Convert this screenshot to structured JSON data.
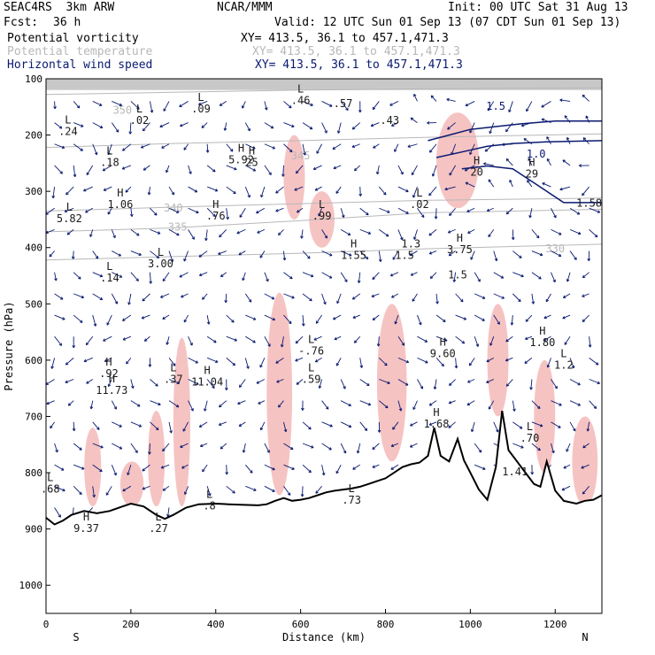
{
  "header": {
    "model": "SEAC4RS  3km ARW",
    "org": "NCAR/MMM",
    "init": "Init: 00 UTC Sat 31 Aug 13",
    "fcst_label": "Fcst:",
    "fcst_value": "36 h",
    "valid": "Valid: 12 UTC Sun 01 Sep 13 (07 CDT Sun 01 Sep 13)"
  },
  "fields": [
    {
      "name": "Potential vorticity",
      "xy": "XY= 413.5, 36.1 to 457.1,471.3",
      "color": "#000000"
    },
    {
      "name": "Potential temperature",
      "xy": "XY= 413.5, 36.1 to 457.1,471.3",
      "color": "#b8b8b8"
    },
    {
      "name": "Horizontal wind speed",
      "xy": "XY= 413.5, 36.1 to 457.1,471.3",
      "color": "#0a1a70"
    }
  ],
  "chart_data": {
    "type": "cross-section",
    "xlabel": "Distance (km)",
    "ylabel": "Pressure (hPa)",
    "xlim": [
      0,
      1310
    ],
    "ylim": [
      100,
      1050
    ],
    "y_reversed": true,
    "x_ticks": [
      0,
      200,
      400,
      600,
      800,
      1000,
      1200
    ],
    "y_ticks": [
      100,
      200,
      300,
      400,
      500,
      600,
      700,
      800,
      900,
      1000
    ],
    "end_labels": {
      "left": "S",
      "right": "N"
    },
    "colors": {
      "pv_contour": "#4a1150",
      "pv_fill": "#f4b8b8",
      "theta": "#b8b8b8",
      "wind": "#0a1a70",
      "terrain": "#000000"
    },
    "terrain": [
      [
        0,
        880
      ],
      [
        20,
        892
      ],
      [
        40,
        885
      ],
      [
        60,
        875
      ],
      [
        90,
        868
      ],
      [
        120,
        872
      ],
      [
        150,
        868
      ],
      [
        180,
        860
      ],
      [
        200,
        855
      ],
      [
        230,
        860
      ],
      [
        260,
        875
      ],
      [
        280,
        882
      ],
      [
        300,
        875
      ],
      [
        330,
        862
      ],
      [
        360,
        856
      ],
      [
        400,
        855
      ],
      [
        430,
        856
      ],
      [
        460,
        857
      ],
      [
        500,
        858
      ],
      [
        520,
        856
      ],
      [
        540,
        850
      ],
      [
        560,
        845
      ],
      [
        580,
        850
      ],
      [
        600,
        848
      ],
      [
        620,
        845
      ],
      [
        640,
        840
      ],
      [
        660,
        835
      ],
      [
        680,
        832
      ],
      [
        700,
        830
      ],
      [
        720,
        828
      ],
      [
        740,
        825
      ],
      [
        760,
        820
      ],
      [
        780,
        815
      ],
      [
        800,
        810
      ],
      [
        820,
        800
      ],
      [
        840,
        790
      ],
      [
        860,
        785
      ],
      [
        880,
        782
      ],
      [
        900,
        770
      ],
      [
        915,
        720
      ],
      [
        930,
        770
      ],
      [
        950,
        780
      ],
      [
        970,
        740
      ],
      [
        985,
        778
      ],
      [
        1000,
        800
      ],
      [
        1020,
        830
      ],
      [
        1040,
        848
      ],
      [
        1060,
        790
      ],
      [
        1075,
        690
      ],
      [
        1090,
        760
      ],
      [
        1110,
        780
      ],
      [
        1130,
        800
      ],
      [
        1150,
        820
      ],
      [
        1165,
        825
      ],
      [
        1180,
        780
      ],
      [
        1200,
        832
      ],
      [
        1220,
        850
      ],
      [
        1250,
        855
      ],
      [
        1270,
        850
      ],
      [
        1290,
        848
      ],
      [
        1310,
        840
      ]
    ],
    "theta_isentropes": [
      {
        "label": "350",
        "points": [
          [
            0,
            128
          ],
          [
            300,
            124
          ],
          [
            600,
            120
          ],
          [
            900,
            118
          ],
          [
            1310,
            116
          ]
        ],
        "label_at": [
          180,
          162
        ]
      },
      {
        "label": "345",
        "points": [
          [
            0,
            222
          ],
          [
            300,
            215
          ],
          [
            600,
            210
          ],
          [
            900,
            204
          ],
          [
            1310,
            198
          ]
        ],
        "label_at": [
          600,
          243
        ]
      },
      {
        "label": "340",
        "points": [
          [
            0,
            335
          ],
          [
            300,
            328
          ],
          [
            600,
            322
          ],
          [
            900,
            316
          ],
          [
            1310,
            312
          ]
        ],
        "label_at": [
          300,
          336
        ]
      },
      {
        "label": "335",
        "points": [
          [
            0,
            372
          ],
          [
            300,
            365
          ],
          [
            600,
            352
          ],
          [
            900,
            338
          ],
          [
            1310,
            332
          ]
        ],
        "label_at": [
          310,
          370
        ]
      },
      {
        "label": "330",
        "points": [
          [
            0,
            422
          ],
          [
            300,
            416
          ],
          [
            600,
            410
          ],
          [
            900,
            402
          ],
          [
            1310,
            394
          ]
        ],
        "label_at": [
          1200,
          408
        ]
      }
    ],
    "pv_labels": [
      {
        "label": "L",
        "value": ".24",
        "x": 52,
        "p": 200
      },
      {
        "label": "L",
        "value": ".02",
        "x": 220,
        "p": 180
      },
      {
        "label": "L",
        "value": ".09",
        "x": 365,
        "p": 160
      },
      {
        "label": "L",
        "value": ".46",
        "x": 600,
        "p": 145
      },
      {
        "label": "",
        "value": ".57",
        "x": 700,
        "p": 150
      },
      {
        "label": "",
        "value": ".43",
        "x": 810,
        "p": 180
      },
      {
        "label": "L",
        "value": ".18",
        "x": 150,
        "p": 255
      },
      {
        "label": "H",
        "value": "5.92",
        "x": 460,
        "p": 250
      },
      {
        "label": "H",
        "value": "25",
        "x": 485,
        "p": 255
      },
      {
        "label": "L",
        "value": ".99",
        "x": 650,
        "p": 350
      },
      {
        "label": "L",
        "value": ".02",
        "x": 880,
        "p": 330
      },
      {
        "label": "H",
        "value": "1.06",
        "x": 175,
        "p": 330
      },
      {
        "label": "L",
        "value": "5.82",
        "x": 55,
        "p": 355
      },
      {
        "label": "H",
        "value": ".76",
        "x": 400,
        "p": 350
      },
      {
        "label": "H",
        "value": "1.55",
        "x": 725,
        "p": 420
      },
      {
        "label": "",
        "value": "1.3",
        "x": 860,
        "p": 400
      },
      {
        "label": "H",
        "value": "3.75",
        "x": 975,
        "p": 410
      },
      {
        "label": "",
        "value": "1.5",
        "x": 845,
        "p": 420
      },
      {
        "label": "",
        "value": "1.5",
        "x": 970,
        "p": 455
      },
      {
        "label": "L",
        "value": "3.00",
        "x": 270,
        "p": 435
      },
      {
        "label": "L",
        "value": ".14",
        "x": 150,
        "p": 460
      },
      {
        "label": "L",
        "value": "-.76",
        "x": 625,
        "p": 590
      },
      {
        "label": "H",
        "value": "9.60",
        "x": 935,
        "p": 595
      },
      {
        "label": "H",
        "value": "1.80",
        "x": 1170,
        "p": 575
      },
      {
        "label": "H",
        "value": ".92",
        "x": 148,
        "p": 630
      },
      {
        "label": "H",
        "value": "11.73",
        "x": 155,
        "p": 660
      },
      {
        "label": "L",
        "value": ".37",
        "x": 300,
        "p": 640
      },
      {
        "label": "H",
        "value": "11.04",
        "x": 380,
        "p": 645
      },
      {
        "label": "L",
        "value": ".59",
        "x": 625,
        "p": 640
      },
      {
        "label": "L",
        "value": "1.2",
        "x": 1220,
        "p": 615
      },
      {
        "label": "H",
        "value": "1.68",
        "x": 920,
        "p": 720
      },
      {
        "label": "L",
        "value": ".70",
        "x": 1140,
        "p": 745
      },
      {
        "label": "",
        "value": "1.41",
        "x": 1105,
        "p": 805
      },
      {
        "label": "L",
        "value": ".68",
        "x": 10,
        "p": 835
      },
      {
        "label": "L",
        "value": ".73",
        "x": 720,
        "p": 855
      },
      {
        "label": "H",
        "value": "20",
        "x": 1015,
        "p": 272
      },
      {
        "label": "H",
        "value": "29",
        "x": 1145,
        "p": 275
      },
      {
        "label": "",
        "value": "1.58",
        "x": 1280,
        "p": 327
      },
      {
        "label": "H",
        "value": "9.37",
        "x": 95,
        "p": 905
      },
      {
        "label": "L",
        "value": ".27",
        "x": 265,
        "p": 905
      },
      {
        "label": "L",
        "value": ".8",
        "x": 385,
        "p": 865
      }
    ],
    "wind_speed_labels": [
      {
        "value": "1.5",
        "x": 1060,
        "p": 155
      },
      {
        "value": "1.0",
        "x": 1155,
        "p": 240
      }
    ],
    "pv_fill_regions": [
      {
        "x0": 90,
        "x1": 130,
        "p0": 720,
        "p1": 860
      },
      {
        "x0": 175,
        "x1": 230,
        "p0": 780,
        "p1": 860
      },
      {
        "x0": 240,
        "x1": 280,
        "p0": 690,
        "p1": 860
      },
      {
        "x0": 300,
        "x1": 340,
        "p0": 560,
        "p1": 860
      },
      {
        "x0": 520,
        "x1": 580,
        "p0": 480,
        "p1": 840
      },
      {
        "x0": 560,
        "x1": 610,
        "p0": 200,
        "p1": 350
      },
      {
        "x0": 620,
        "x1": 680,
        "p0": 300,
        "p1": 400
      },
      {
        "x0": 780,
        "x1": 850,
        "p0": 500,
        "p1": 780
      },
      {
        "x0": 920,
        "x1": 1020,
        "p0": 160,
        "p1": 330
      },
      {
        "x0": 1040,
        "x1": 1090,
        "p0": 500,
        "p1": 700
      },
      {
        "x0": 1150,
        "x1": 1200,
        "p0": 600,
        "p1": 800
      },
      {
        "x0": 1240,
        "x1": 1300,
        "p0": 700,
        "p1": 860
      }
    ],
    "wind_jet_contours": [
      {
        "points": [
          [
            900,
            210
          ],
          [
            950,
            200
          ],
          [
            1000,
            190
          ],
          [
            1060,
            185
          ],
          [
            1120,
            180
          ],
          [
            1200,
            175
          ],
          [
            1310,
            175
          ]
        ]
      },
      {
        "points": [
          [
            920,
            240
          ],
          [
            980,
            230
          ],
          [
            1040,
            220
          ],
          [
            1100,
            215
          ],
          [
            1180,
            212
          ],
          [
            1310,
            210
          ]
        ]
      },
      {
        "points": [
          [
            980,
            260
          ],
          [
            1040,
            255
          ],
          [
            1100,
            260
          ],
          [
            1160,
            290
          ],
          [
            1220,
            320
          ],
          [
            1310,
            320
          ]
        ]
      }
    ]
  }
}
